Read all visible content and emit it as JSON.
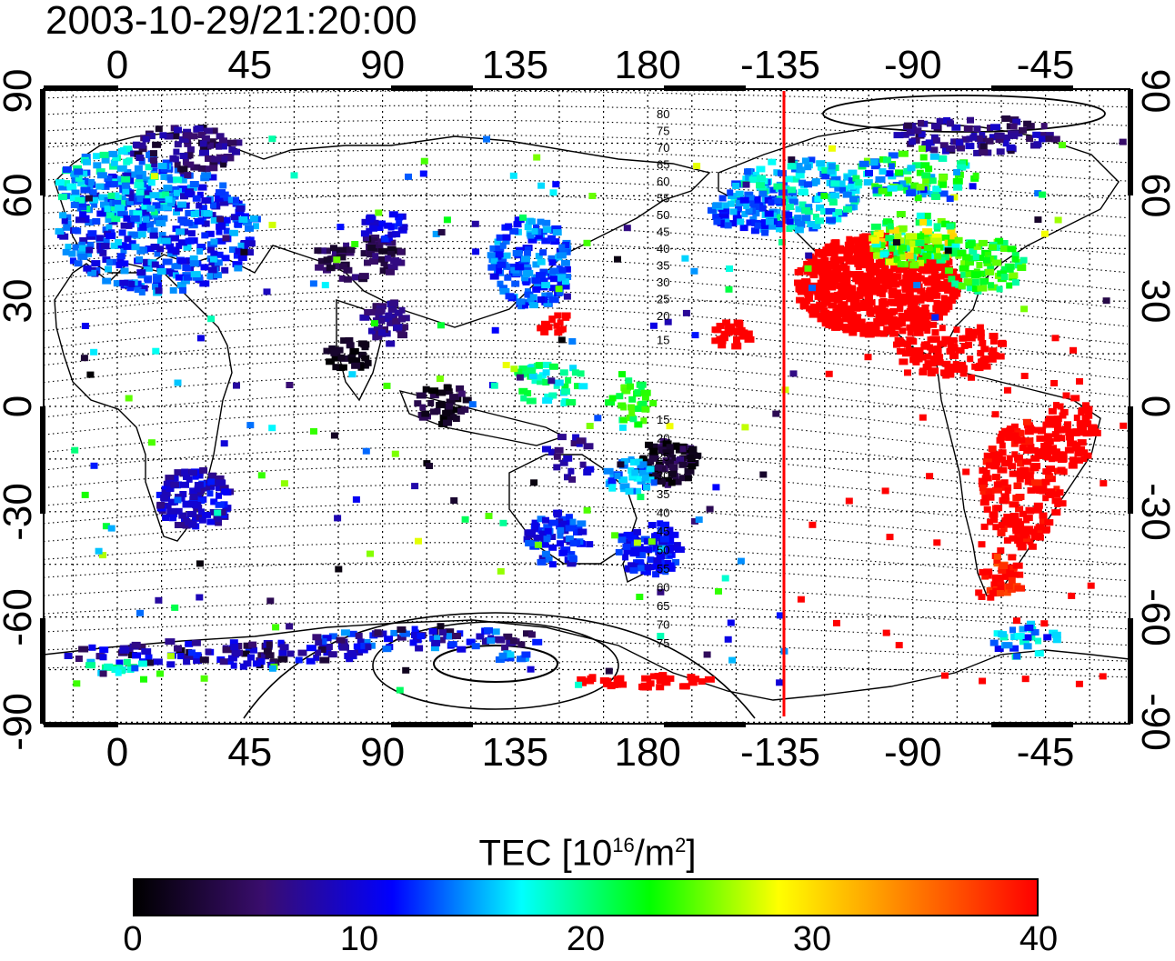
{
  "title": "2003-10-29/21:20:00",
  "axes": {
    "top_labels": [
      "0",
      "45",
      "90",
      "135",
      "180",
      "-135",
      "-90",
      "-45"
    ],
    "bottom_labels": [
      "0",
      "45",
      "90",
      "135",
      "180",
      "-135",
      "-90",
      "-45"
    ],
    "left_labels": [
      "90",
      "60",
      "30",
      "0",
      "-30",
      "-60",
      "-90"
    ],
    "right_labels": [
      "90",
      "60",
      "30",
      "0",
      "-30",
      "-60",
      "-90"
    ]
  },
  "maglat_north_labels": [
    "80",
    "75",
    "70",
    "65",
    "60",
    "55",
    "50",
    "45",
    "40",
    "35",
    "30",
    "25",
    "20",
    "15"
  ],
  "maglat_south_labels": [
    "15",
    "20",
    "25",
    "30",
    "35",
    "40",
    "45",
    "50",
    "55",
    "60",
    "65",
    "70",
    "75"
  ],
  "colorbar": {
    "title_main": "TEC  [10",
    "title_sup1": "16",
    "title_mid": "/m",
    "title_sup2": "2",
    "title_end": "]",
    "tick_labels": [
      "0",
      "10",
      "20",
      "30",
      "40"
    ],
    "colors": [
      "#000000",
      "#3a0d6e",
      "#0000ff",
      "#00ffff",
      "#00ff00",
      "#ffff00",
      "#ff8000",
      "#ff0000"
    ]
  },
  "colors": {
    "terminator_line": "#ff0000",
    "high_tec": "#ff0000",
    "mid_tec": "#00c8ff",
    "low_tec": "#3c0f78"
  },
  "chart_data": {
    "type": "heatmap",
    "title": "2003-10-29/21:20:00",
    "x_axis": {
      "label": "",
      "ticks": [
        0,
        45,
        90,
        135,
        180,
        -135,
        -90,
        -45
      ],
      "range": [
        -25,
        330
      ]
    },
    "y_axis": {
      "label": "",
      "ticks": [
        90,
        60,
        30,
        0,
        -30,
        -60,
        -90
      ],
      "range": [
        -90,
        90
      ]
    },
    "colorbar": {
      "label": "TEC [10^16/m^2]",
      "range": [
        0,
        40
      ],
      "ticks": [
        0,
        10,
        20,
        30,
        40
      ]
    },
    "terminator_longitude": -135,
    "regions": [
      {
        "name": "",
        "lon_range": [
          -20,
          40
        ],
        "lat_range": [
          30,
          75
        ],
        "tec": 10
      },
      {
        "name": "",
        "lon_range": [
          -120,
          -70
        ],
        "lat_range": [
          15,
          55
        ],
        "tec": 40
      },
      {
        "name": "",
        "lon_range": [
          -80,
          -40
        ],
        "lat_range": [
          -60,
          5
        ],
        "tec": 38
      },
      {
        "name": "",
        "lon_range": [
          120,
          145
        ],
        "lat_range": [
          25,
          55
        ],
        "tec": 13
      },
      {
        "name": "",
        "lon_range": [
          160,
          180
        ],
        "lat_range": [
          -45,
          -30
        ],
        "tec": 11
      },
      {
        "name": "",
        "lon_range": [
          15,
          35
        ],
        "lat_range": [
          -40,
          -20
        ],
        "tec": 7
      },
      {
        "name": "",
        "lon_range": [
          135,
          155
        ],
        "lat_range": [
          -45,
          -25
        ],
        "tec": 10
      }
    ]
  }
}
